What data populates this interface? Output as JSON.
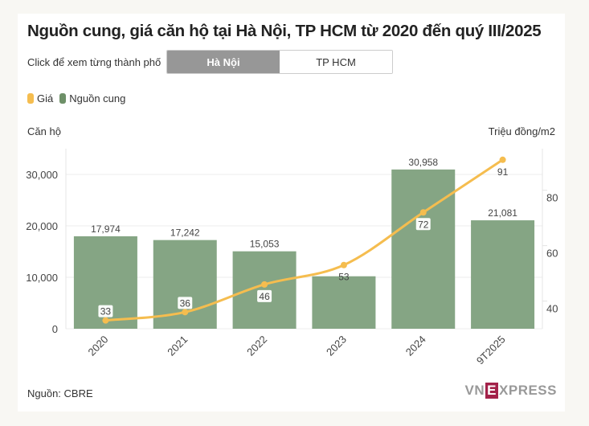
{
  "title": "Nguồn cung, giá căn hộ tại Hà Nội, TP HCM từ 2020 đến quý III/2025",
  "switcher": {
    "label": "Click để xem từng thành phố",
    "options": [
      "Hà Nội",
      "TP HCM"
    ],
    "selected": "Hà Nội"
  },
  "source": "Nguồn: CBRE",
  "logo": {
    "left": "VN",
    "mid": "E",
    "right": "XPRESS"
  },
  "colors": {
    "price": "#f5bd4f",
    "supply": "#85a584"
  },
  "chart_data": {
    "type": "bar+line",
    "categories": [
      "2020",
      "2021",
      "2022",
      "2023",
      "2024",
      "9T2025"
    ],
    "legend": [
      "Giá",
      "Nguồn cung"
    ],
    "legend_position": "top-left",
    "ylabel_left": "Căn hộ",
    "ylabel_right": "Triệu đồng/m2",
    "ylim_left": [
      0,
      35000
    ],
    "yticks_left": [
      "0",
      "10,000",
      "20,000",
      "30,000"
    ],
    "ylim_right": [
      30,
      95
    ],
    "yticks_right": [
      "40",
      "60",
      "80"
    ],
    "grid": true,
    "series": [
      {
        "name": "Nguồn cung",
        "type": "bar",
        "axis": "left",
        "values": [
          17974,
          17242,
          15053,
          10200,
          30958,
          21081
        ],
        "labels": [
          "17,974",
          "17,242",
          "15,053",
          "",
          "30,958",
          "21,081"
        ]
      },
      {
        "name": "Giá",
        "type": "line",
        "axis": "right",
        "values": [
          33,
          36,
          46,
          53,
          72,
          91
        ],
        "labels": [
          "33",
          "36",
          "46",
          "53",
          "72",
          "91"
        ]
      }
    ]
  }
}
